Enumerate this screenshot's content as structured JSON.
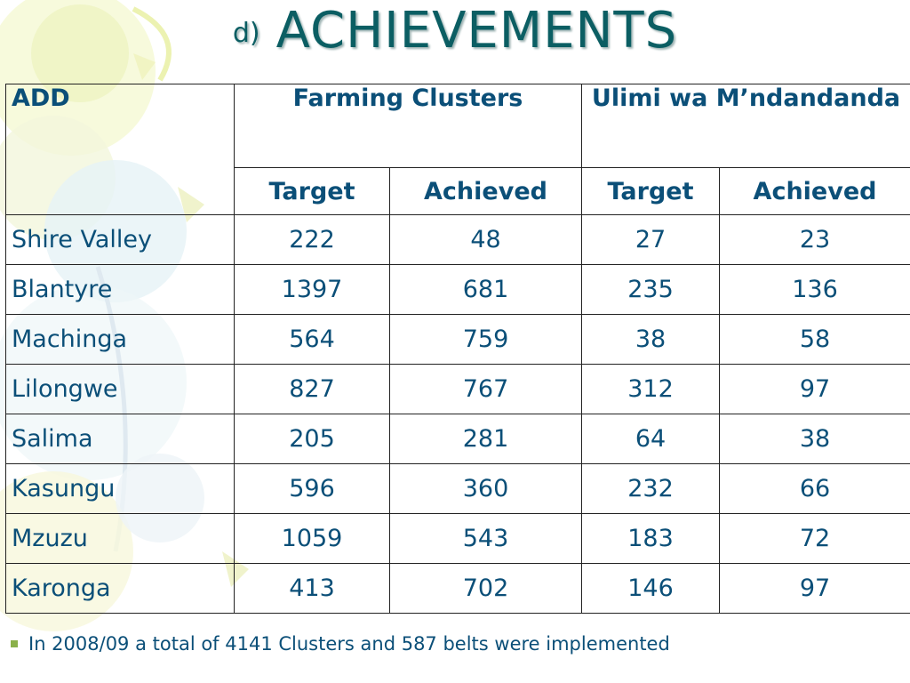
{
  "slide": {
    "title_prefix": "d)",
    "title": "ACHIEVEMENTS"
  },
  "table": {
    "col_add": "ADD",
    "group_farming": "Farming Clusters",
    "group_ulimi": "Ulimi wa M’ndandanda",
    "sub_target_1": "Target",
    "sub_achieved_1": "Achieved",
    "sub_target_2": "Target",
    "sub_achieved_2": "Achieved",
    "rows": [
      {
        "name": "Shire Valley",
        "fc_target": "222",
        "fc_achieved": "48",
        "uw_target": "27",
        "uw_achieved": "23"
      },
      {
        "name": "Blantyre",
        "fc_target": "1397",
        "fc_achieved": "681",
        "uw_target": "235",
        "uw_achieved": "136"
      },
      {
        "name": "Machinga",
        "fc_target": "564",
        "fc_achieved": "759",
        "uw_target": "38",
        "uw_achieved": "58"
      },
      {
        "name": "Lilongwe",
        "fc_target": "827",
        "fc_achieved": "767",
        "uw_target": "312",
        "uw_achieved": "97"
      },
      {
        "name": "Salima",
        "fc_target": "205",
        "fc_achieved": "281",
        "uw_target": "64",
        "uw_achieved": "38"
      },
      {
        "name": "Kasungu",
        "fc_target": "596",
        "fc_achieved": "360",
        "uw_target": "232",
        "uw_achieved": "66"
      },
      {
        "name": "Mzuzu",
        "fc_target": "1059",
        "fc_achieved": "543",
        "uw_target": "183",
        "uw_achieved": "72"
      },
      {
        "name": "Karonga",
        "fc_target": "413",
        "fc_achieved": "702",
        "uw_target": "146",
        "uw_achieved": "97"
      }
    ]
  },
  "note": {
    "text": "In 2008/09 a total of 4141 Clusters and 587 belts were implemented"
  },
  "colors": {
    "title": "#0b5e63",
    "table_text": "#0b4f78",
    "bullet": "#8ab04a"
  }
}
